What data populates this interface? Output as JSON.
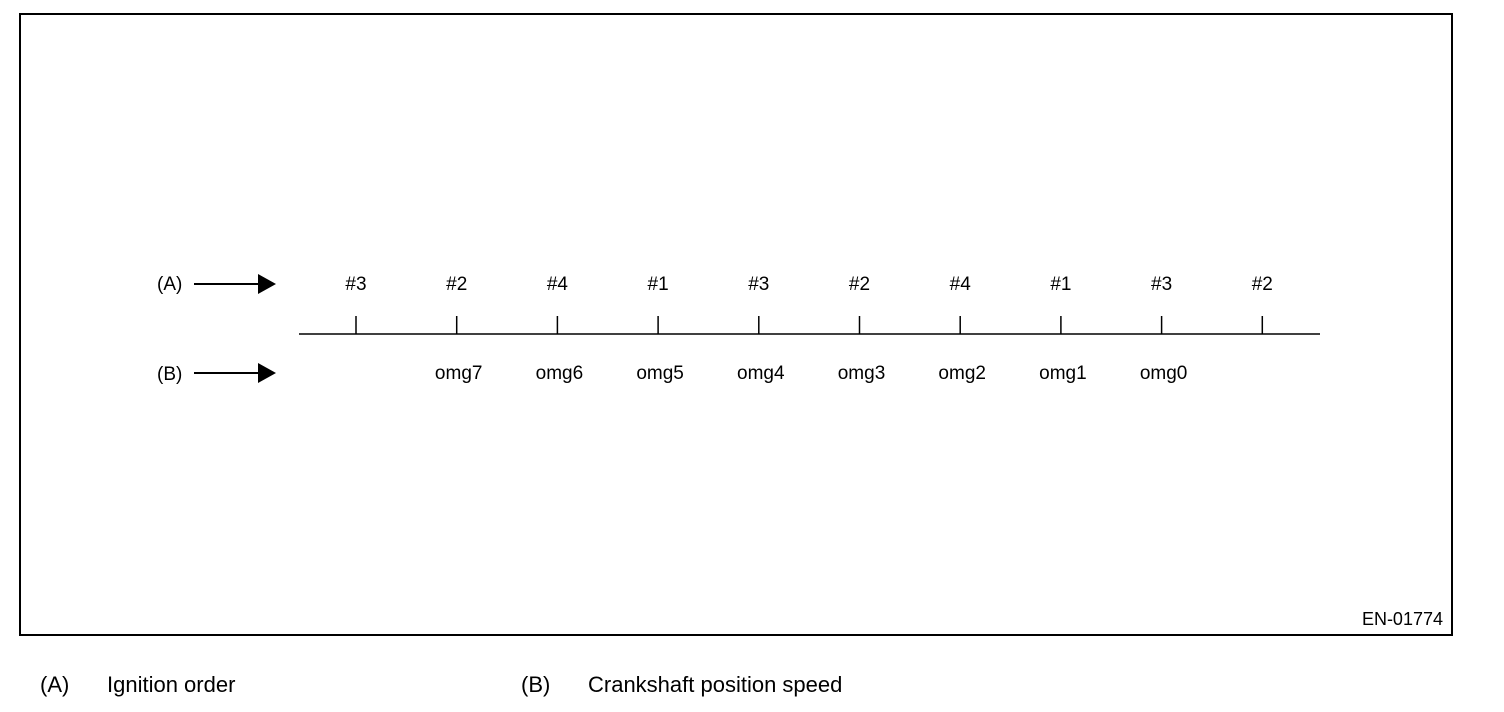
{
  "diagram": {
    "row_a": {
      "key": "(A)"
    },
    "row_b": {
      "key": "(B)"
    },
    "ignition_sequence": [
      "#3",
      "#2",
      "#4",
      "#1",
      "#3",
      "#2",
      "#4",
      "#1",
      "#3",
      "#2"
    ],
    "speed_labels": [
      "omg7",
      "omg6",
      "omg5",
      "omg4",
      "omg3",
      "omg2",
      "omg1",
      "omg0"
    ],
    "figure_id": "EN-01774"
  },
  "legend": {
    "a": {
      "key": "(A)",
      "text": "Ignition order"
    },
    "b": {
      "key": "(B)",
      "text": "Crankshaft position speed"
    }
  }
}
